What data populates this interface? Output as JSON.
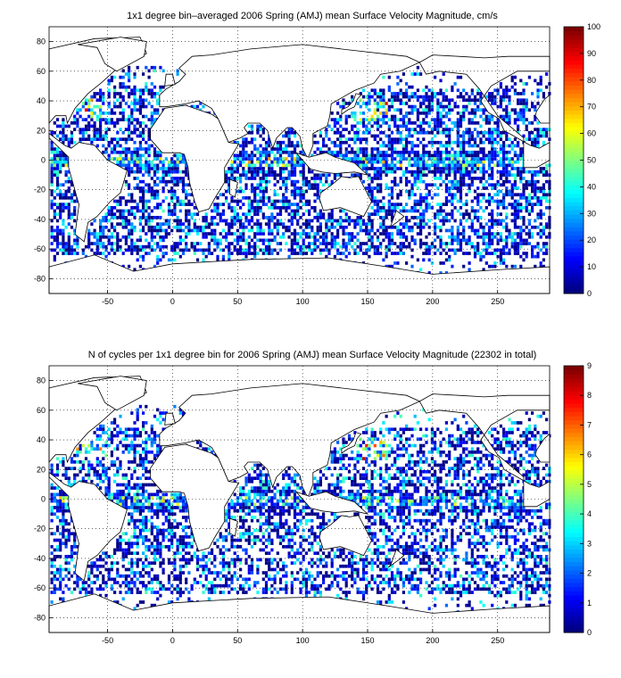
{
  "figure": {
    "panels": [
      {
        "title": "1x1 degree bin–averaged 2006 Spring (AMJ) mean Surface Velocity Magnitude, cm/s",
        "colorbar_ticks": [
          "0",
          "10",
          "20",
          "30",
          "40",
          "50",
          "60",
          "70",
          "80",
          "90",
          "100"
        ],
        "colorbar_max": 100,
        "density": 0.55
      },
      {
        "title": "N of cycles per 1x1 degree bin for 2006 Spring (AMJ) mean Surface Velocity Magnitude (22302 in total)",
        "colorbar_ticks": [
          "0",
          "1",
          "2",
          "3",
          "4",
          "5",
          "6",
          "7",
          "8",
          "9"
        ],
        "colorbar_max": 9,
        "density": 0.5
      }
    ]
  },
  "chart_data": [
    {
      "type": "heatmap",
      "title": "1x1 degree bin–averaged 2006 Spring (AMJ) mean Surface Velocity Magnitude, cm/s",
      "x_ticks": [
        "-50",
        "0",
        "50",
        "100",
        "150",
        "200",
        "250"
      ],
      "y_ticks": [
        "80",
        "60",
        "40",
        "20",
        "0",
        "-20",
        "-40",
        "-60",
        "-80"
      ],
      "xlim": [
        -95,
        290
      ],
      "ylim": [
        -90,
        90
      ],
      "colorbar": {
        "min": 0,
        "max": 100,
        "ticks": [
          0,
          10,
          20,
          30,
          40,
          50,
          60,
          70,
          80,
          90,
          100
        ]
      },
      "grid": true
    },
    {
      "type": "heatmap",
      "title": "N of cycles per 1x1 degree bin for 2006 Spring (AMJ) mean Surface Velocity Magnitude (22302 in total)",
      "x_ticks": [
        "-50",
        "0",
        "50",
        "100",
        "150",
        "200",
        "250"
      ],
      "y_ticks": [
        "80",
        "60",
        "40",
        "20",
        "0",
        "-20",
        "-40",
        "-60",
        "-80"
      ],
      "xlim": [
        -95,
        290
      ],
      "ylim": [
        -90,
        90
      ],
      "colorbar": {
        "min": 0,
        "max": 9,
        "ticks": [
          0,
          1,
          2,
          3,
          4,
          5,
          6,
          7,
          8,
          9
        ]
      },
      "grid": true
    }
  ]
}
